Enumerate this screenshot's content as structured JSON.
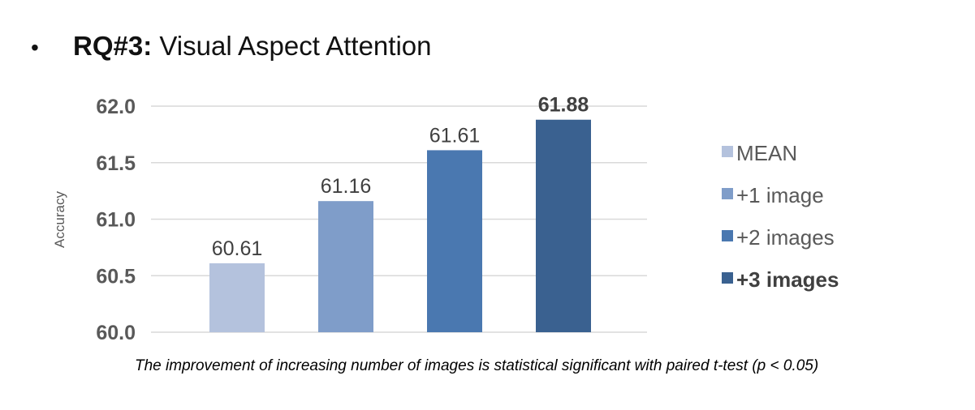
{
  "heading": {
    "bullet": "•",
    "label": "RQ#3:",
    "text": " Visual Aspect Attention"
  },
  "chart_data": {
    "type": "bar",
    "ylabel": "Accuracy",
    "ylim": [
      60.0,
      62.0
    ],
    "yticks": [
      "60.0",
      "60.5",
      "61.0",
      "61.5",
      "62.0"
    ],
    "grid": true,
    "legend_position": "right",
    "series": [
      {
        "name": "MEAN",
        "value": 60.61,
        "label": "60.61",
        "color": "#b4c2dd",
        "bold": false
      },
      {
        "name": "+1 image",
        "value": 61.16,
        "label": "61.16",
        "color": "#7f9dc9",
        "bold": false
      },
      {
        "name": "+2 images",
        "value": 61.61,
        "label": "61.61",
        "color": "#4a78b0",
        "bold": false
      },
      {
        "name": "+3 images",
        "value": 61.88,
        "label": "61.88",
        "color": "#3a6190",
        "bold": true
      }
    ]
  },
  "note": "The improvement of increasing number of images is statistical significant with paired t-test (p < 0.05)"
}
